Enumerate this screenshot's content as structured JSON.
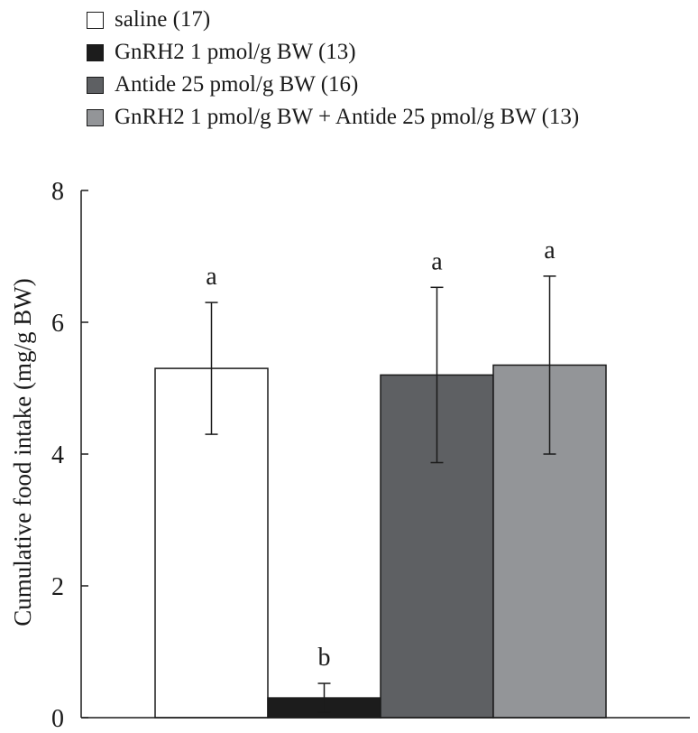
{
  "chart_data": {
    "type": "bar",
    "ylabel": "Cumulative food intake (mg/g BW)",
    "xlabel": "",
    "ylim": [
      0,
      8
    ],
    "yticks": [
      0,
      2,
      4,
      6,
      8
    ],
    "grid": false,
    "legend_position": "top-left",
    "series": [
      {
        "name": "saline (17)",
        "value": 5.3,
        "error": 1.0,
        "significance": "a",
        "color": "#ffffff"
      },
      {
        "name": "GnRH2 1 pmol/g BW (13)",
        "value": 0.3,
        "error": 0.22,
        "significance": "b",
        "color": "#1c1c1c"
      },
      {
        "name": "Antide 25 pmol/g BW (16)",
        "value": 5.2,
        "error": 1.33,
        "significance": "a",
        "color": "#5e6063"
      },
      {
        "name": "GnRH2 1 pmol/g BW + Antide 25 pmol/g BW (13)",
        "value": 5.35,
        "error": 1.35,
        "significance": "a",
        "color": "#939598"
      }
    ]
  }
}
